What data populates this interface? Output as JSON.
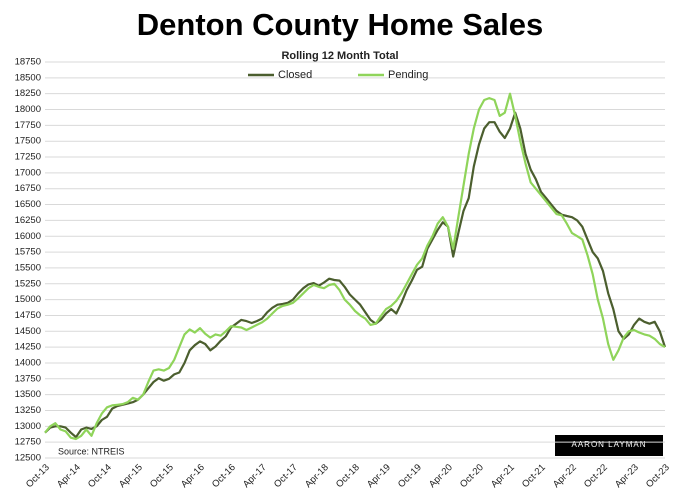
{
  "chart_data": {
    "type": "line",
    "title": "Denton County Home Sales",
    "subtitle": "Rolling 12 Month Total",
    "source": "Source: NTREIS",
    "logo": "AARON LAYMAN",
    "categories": [
      "Oct-13",
      null,
      null,
      null,
      null,
      null,
      "Apr-14",
      null,
      null,
      null,
      null,
      null,
      "Oct-14",
      null,
      null,
      null,
      null,
      null,
      "Apr-15",
      null,
      null,
      null,
      null,
      null,
      "Oct-15",
      null,
      null,
      null,
      null,
      null,
      "Apr-16",
      null,
      null,
      null,
      null,
      null,
      "Oct-16",
      null,
      null,
      null,
      null,
      null,
      "Apr-17",
      null,
      null,
      null,
      null,
      null,
      "Oct-17",
      null,
      null,
      null,
      null,
      null,
      "Apr-18",
      null,
      null,
      null,
      null,
      null,
      "Oct-18",
      null,
      null,
      null,
      null,
      null,
      "Apr-19",
      null,
      null,
      null,
      null,
      null,
      "Oct-19",
      null,
      null,
      null,
      null,
      null,
      "Apr-20",
      null,
      null,
      null,
      null,
      null,
      "Oct-20",
      null,
      null,
      null,
      null,
      null,
      "Apr-21",
      null,
      null,
      null,
      null,
      null,
      "Oct-21",
      null,
      null,
      null,
      null,
      null,
      "Apr-22",
      null,
      null,
      null,
      null,
      null,
      "Oct-22",
      null,
      null,
      null,
      null,
      null,
      "Apr-23",
      null,
      null,
      null,
      null,
      null,
      "Oct-23"
    ],
    "series": [
      {
        "name": "Closed",
        "color": "#4b5e2e",
        "values": [
          12900,
          12980,
          13000,
          13000,
          12980,
          12900,
          12830,
          12950,
          12980,
          12960,
          13000,
          13100,
          13150,
          13280,
          13320,
          13340,
          13360,
          13380,
          13420,
          13500,
          13600,
          13700,
          13760,
          13720,
          13750,
          13820,
          13850,
          14000,
          14200,
          14280,
          14340,
          14300,
          14200,
          14260,
          14350,
          14420,
          14560,
          14620,
          14680,
          14660,
          14630,
          14660,
          14700,
          14800,
          14870,
          14920,
          14930,
          14950,
          15000,
          15100,
          15180,
          15240,
          15260,
          15220,
          15270,
          15330,
          15310,
          15300,
          15200,
          15080,
          15000,
          14920,
          14800,
          14680,
          14620,
          14680,
          14780,
          14850,
          14780,
          14950,
          15150,
          15300,
          15470,
          15520,
          15800,
          15950,
          16100,
          16220,
          16150,
          15680,
          16050,
          16400,
          16600,
          17100,
          17450,
          17700,
          17800,
          17800,
          17650,
          17550,
          17700,
          17950,
          17700,
          17300,
          17050,
          16900,
          16700,
          16600,
          16500,
          16400,
          16340,
          16320,
          16300,
          16250,
          16150,
          15950,
          15750,
          15650,
          15450,
          15100,
          14850,
          14500,
          14380,
          14450,
          14600,
          14700,
          14650,
          14620,
          14650,
          14500,
          14250
        ]
      },
      {
        "name": "Pending",
        "color": "#8fd45a",
        "values": [
          12900,
          13000,
          13050,
          12950,
          12920,
          12820,
          12800,
          12850,
          12950,
          12850,
          13050,
          13200,
          13300,
          13330,
          13340,
          13350,
          13380,
          13450,
          13420,
          13500,
          13700,
          13880,
          13900,
          13880,
          13920,
          14050,
          14250,
          14450,
          14530,
          14480,
          14550,
          14460,
          14400,
          14450,
          14430,
          14500,
          14580,
          14570,
          14560,
          14520,
          14560,
          14600,
          14640,
          14700,
          14780,
          14860,
          14900,
          14920,
          14950,
          15020,
          15100,
          15180,
          15230,
          15200,
          15180,
          15230,
          15250,
          15150,
          15000,
          14920,
          14820,
          14750,
          14700,
          14600,
          14620,
          14740,
          14850,
          14900,
          14980,
          15100,
          15250,
          15400,
          15550,
          15650,
          15850,
          16000,
          16200,
          16300,
          16150,
          15800,
          16300,
          16800,
          17300,
          17700,
          18000,
          18150,
          18180,
          18150,
          17900,
          17950,
          18250,
          17900,
          17500,
          17150,
          16850,
          16750,
          16650,
          16550,
          16450,
          16350,
          16330,
          16200,
          16050,
          16000,
          15950,
          15700,
          15400,
          15000,
          14700,
          14300,
          14050,
          14200,
          14400,
          14500,
          14520,
          14480,
          14450,
          14430,
          14380,
          14300,
          14250
        ]
      }
    ],
    "ylim": [
      12500,
      18750
    ],
    "yticks": [
      12500,
      12750,
      13000,
      13250,
      13500,
      13750,
      14000,
      14250,
      14500,
      14750,
      15000,
      15250,
      15500,
      15750,
      16000,
      16250,
      16500,
      16750,
      17000,
      17250,
      17500,
      17750,
      18000,
      18250,
      18500,
      18750
    ],
    "grid": true,
    "legend": "top"
  }
}
